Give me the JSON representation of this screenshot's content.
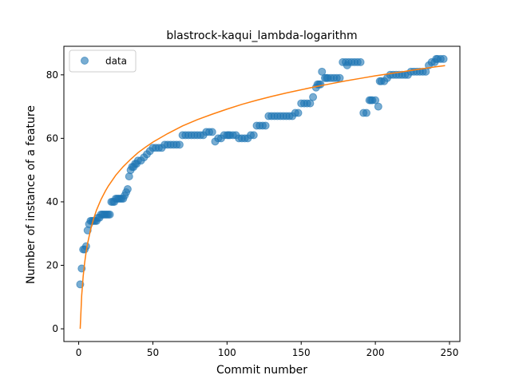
{
  "chart_data": {
    "type": "scatter",
    "title": "blastrock-kaqui_lambda-logarithm",
    "xlabel": "Commit number",
    "ylabel": "Number of instance of a feature",
    "xlim": [
      -10,
      257
    ],
    "ylim": [
      -4,
      89
    ],
    "xticks": [
      0,
      50,
      100,
      150,
      200,
      250
    ],
    "yticks": [
      0,
      20,
      40,
      60,
      80
    ],
    "grid": false,
    "legend_position": "top-left",
    "colors": {
      "data": "#1f77b4",
      "fit": "#ff7f0e"
    },
    "series": [
      {
        "name": "data",
        "kind": "scatter",
        "x": [
          1,
          2,
          3,
          4,
          5,
          6,
          7,
          8,
          9,
          10,
          11,
          12,
          13,
          14,
          15,
          16,
          17,
          18,
          19,
          20,
          21,
          22,
          23,
          24,
          25,
          26,
          27,
          28,
          29,
          30,
          31,
          32,
          33,
          34,
          35,
          36,
          37,
          38,
          39,
          40,
          42,
          44,
          46,
          48,
          50,
          52,
          54,
          56,
          58,
          60,
          62,
          64,
          66,
          68,
          70,
          72,
          74,
          76,
          78,
          80,
          82,
          84,
          86,
          88,
          90,
          92,
          94,
          96,
          98,
          100,
          101,
          102,
          104,
          106,
          108,
          110,
          112,
          114,
          116,
          118,
          120,
          122,
          124,
          126,
          128,
          130,
          132,
          134,
          136,
          138,
          140,
          142,
          144,
          146,
          148,
          150,
          152,
          154,
          156,
          158,
          160,
          161,
          162,
          163,
          164,
          166,
          167,
          168,
          170,
          172,
          174,
          176,
          178,
          180,
          181,
          182,
          184,
          186,
          188,
          190,
          192,
          194,
          196,
          197,
          198,
          200,
          202,
          203,
          204,
          206,
          208,
          210,
          212,
          214,
          216,
          218,
          220,
          222,
          224,
          226,
          228,
          230,
          232,
          234,
          236,
          238,
          240,
          241,
          242,
          244,
          246
        ],
        "y": [
          14,
          19,
          25,
          25,
          26,
          31,
          33,
          34,
          34,
          34,
          34,
          34,
          35,
          35,
          36,
          36,
          36,
          36,
          36,
          36,
          36,
          40,
          40,
          40,
          41,
          41,
          41,
          41,
          41,
          41,
          42,
          43,
          44,
          48,
          50,
          51,
          51,
          52,
          52,
          53,
          53,
          54,
          55,
          56,
          57,
          57,
          57,
          57,
          58,
          58,
          58,
          58,
          58,
          58,
          61,
          61,
          61,
          61,
          61,
          61,
          61,
          61,
          62,
          62,
          62,
          59,
          60,
          60,
          61,
          61,
          61,
          61,
          61,
          61,
          60,
          60,
          60,
          60,
          61,
          61,
          64,
          64,
          64,
          64,
          67,
          67,
          67,
          67,
          67,
          67,
          67,
          67,
          67,
          68,
          68,
          71,
          71,
          71,
          71,
          73,
          76,
          77,
          77,
          77,
          81,
          79,
          79,
          79,
          79,
          79,
          79,
          79,
          84,
          84,
          83,
          84,
          84,
          84,
          84,
          84,
          68,
          68,
          72,
          72,
          72,
          72,
          70,
          78,
          78,
          78,
          79,
          80,
          80,
          80,
          80,
          80,
          80,
          80,
          81,
          81,
          81,
          81,
          81,
          81,
          83,
          84,
          84,
          85,
          85,
          85,
          85
        ]
      },
      {
        "name": "",
        "kind": "line",
        "model": "logarithmic fit",
        "x": [
          1,
          2,
          3,
          4,
          5,
          6,
          8,
          10,
          12,
          15,
          18,
          20,
          25,
          30,
          35,
          40,
          45,
          50,
          60,
          70,
          80,
          90,
          100,
          110,
          120,
          130,
          140,
          150,
          160,
          170,
          180,
          190,
          200,
          210,
          220,
          230,
          240,
          247
        ],
        "y": [
          0,
          10.4,
          16.5,
          20.8,
          24.2,
          26.9,
          31.2,
          34.6,
          37.4,
          40.7,
          43.4,
          45.0,
          48.4,
          51.1,
          53.4,
          55.5,
          57.2,
          58.8,
          61.5,
          63.9,
          65.9,
          67.6,
          69.2,
          70.7,
          72.0,
          73.2,
          74.3,
          75.3,
          76.3,
          77.2,
          78.1,
          78.9,
          79.7,
          80.4,
          81.1,
          81.8,
          82.5,
          82.9
        ]
      }
    ]
  }
}
